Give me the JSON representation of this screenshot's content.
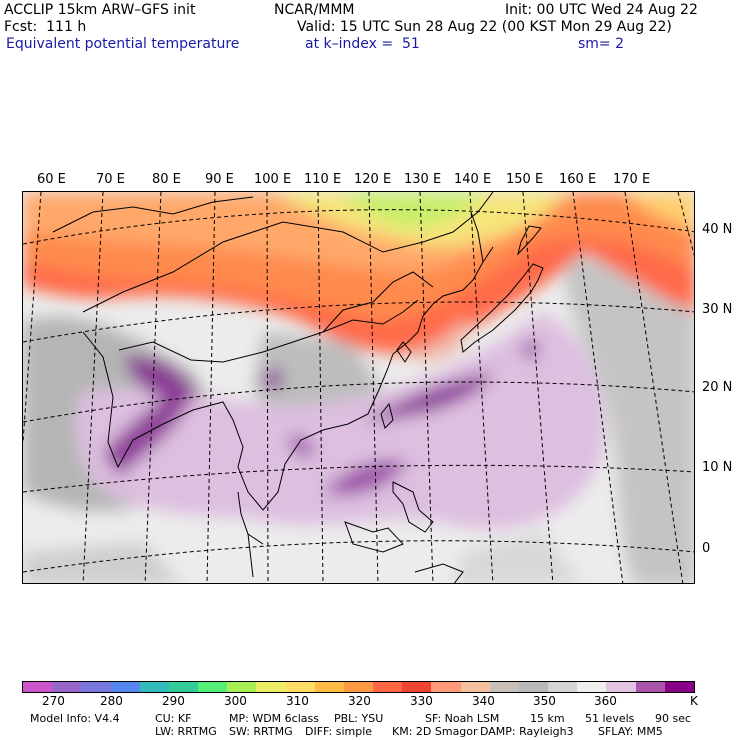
{
  "header": {
    "line1_left": "ACCLIP 15km ARW–GFS init",
    "line1_center": "NCAR/MMM",
    "line1_right": "Init: 00 UTC Wed 24 Aug 22",
    "line2_left": "Fcst:  111 h",
    "line2_right": "Valid: 15 UTC Sun 28 Aug 22 (00 KST Mon 29 Aug 22)",
    "line3_left": "Equivalent potential temperature",
    "line3_center": "at k–index =  51",
    "line3_right": "sm= 2"
  },
  "map": {
    "longitude_labels": [
      "60 E",
      "70 E",
      "80 E",
      "90 E",
      "100 E",
      "110 E",
      "120 E",
      "130 E",
      "140 E",
      "150 E",
      "160 E",
      "170 E"
    ],
    "latitude_labels": [
      "40 N",
      "30 N",
      "20 N",
      "10 N",
      "0"
    ]
  },
  "colorbar": {
    "colors": [
      "#cc55cc",
      "#9966cc",
      "#7777dd",
      "#5588ee",
      "#33bbbb",
      "#33cc99",
      "#55ee77",
      "#aaee55",
      "#eeee66",
      "#ffdd66",
      "#ffbb44",
      "#ff9944",
      "#ff6644",
      "#ee4433",
      "#ff9977",
      "#f5c0a0",
      "#c8c0b8",
      "#b8b8b8",
      "#d4d4d4",
      "#eeeeee",
      "#e4c4e4",
      "#aa55aa",
      "#880088"
    ],
    "tick_labels": [
      "270",
      "280",
      "290",
      "300",
      "310",
      "320",
      "330",
      "340",
      "350",
      "360",
      "K"
    ],
    "units": "K"
  },
  "footer": {
    "line1": [
      "Model Info: V4.4",
      "CU: KF",
      "MP: WDM 6class",
      "PBL: YSU",
      "SF: Noah LSM",
      "15 km",
      "51 levels",
      "90 sec"
    ],
    "line2": [
      "LW: RRTMG",
      "SW: RRTMG",
      "DIFF: simple",
      "KM: 2D Smagor",
      "DAMP: Rayleigh3",
      "SFLAY: MM5"
    ]
  }
}
